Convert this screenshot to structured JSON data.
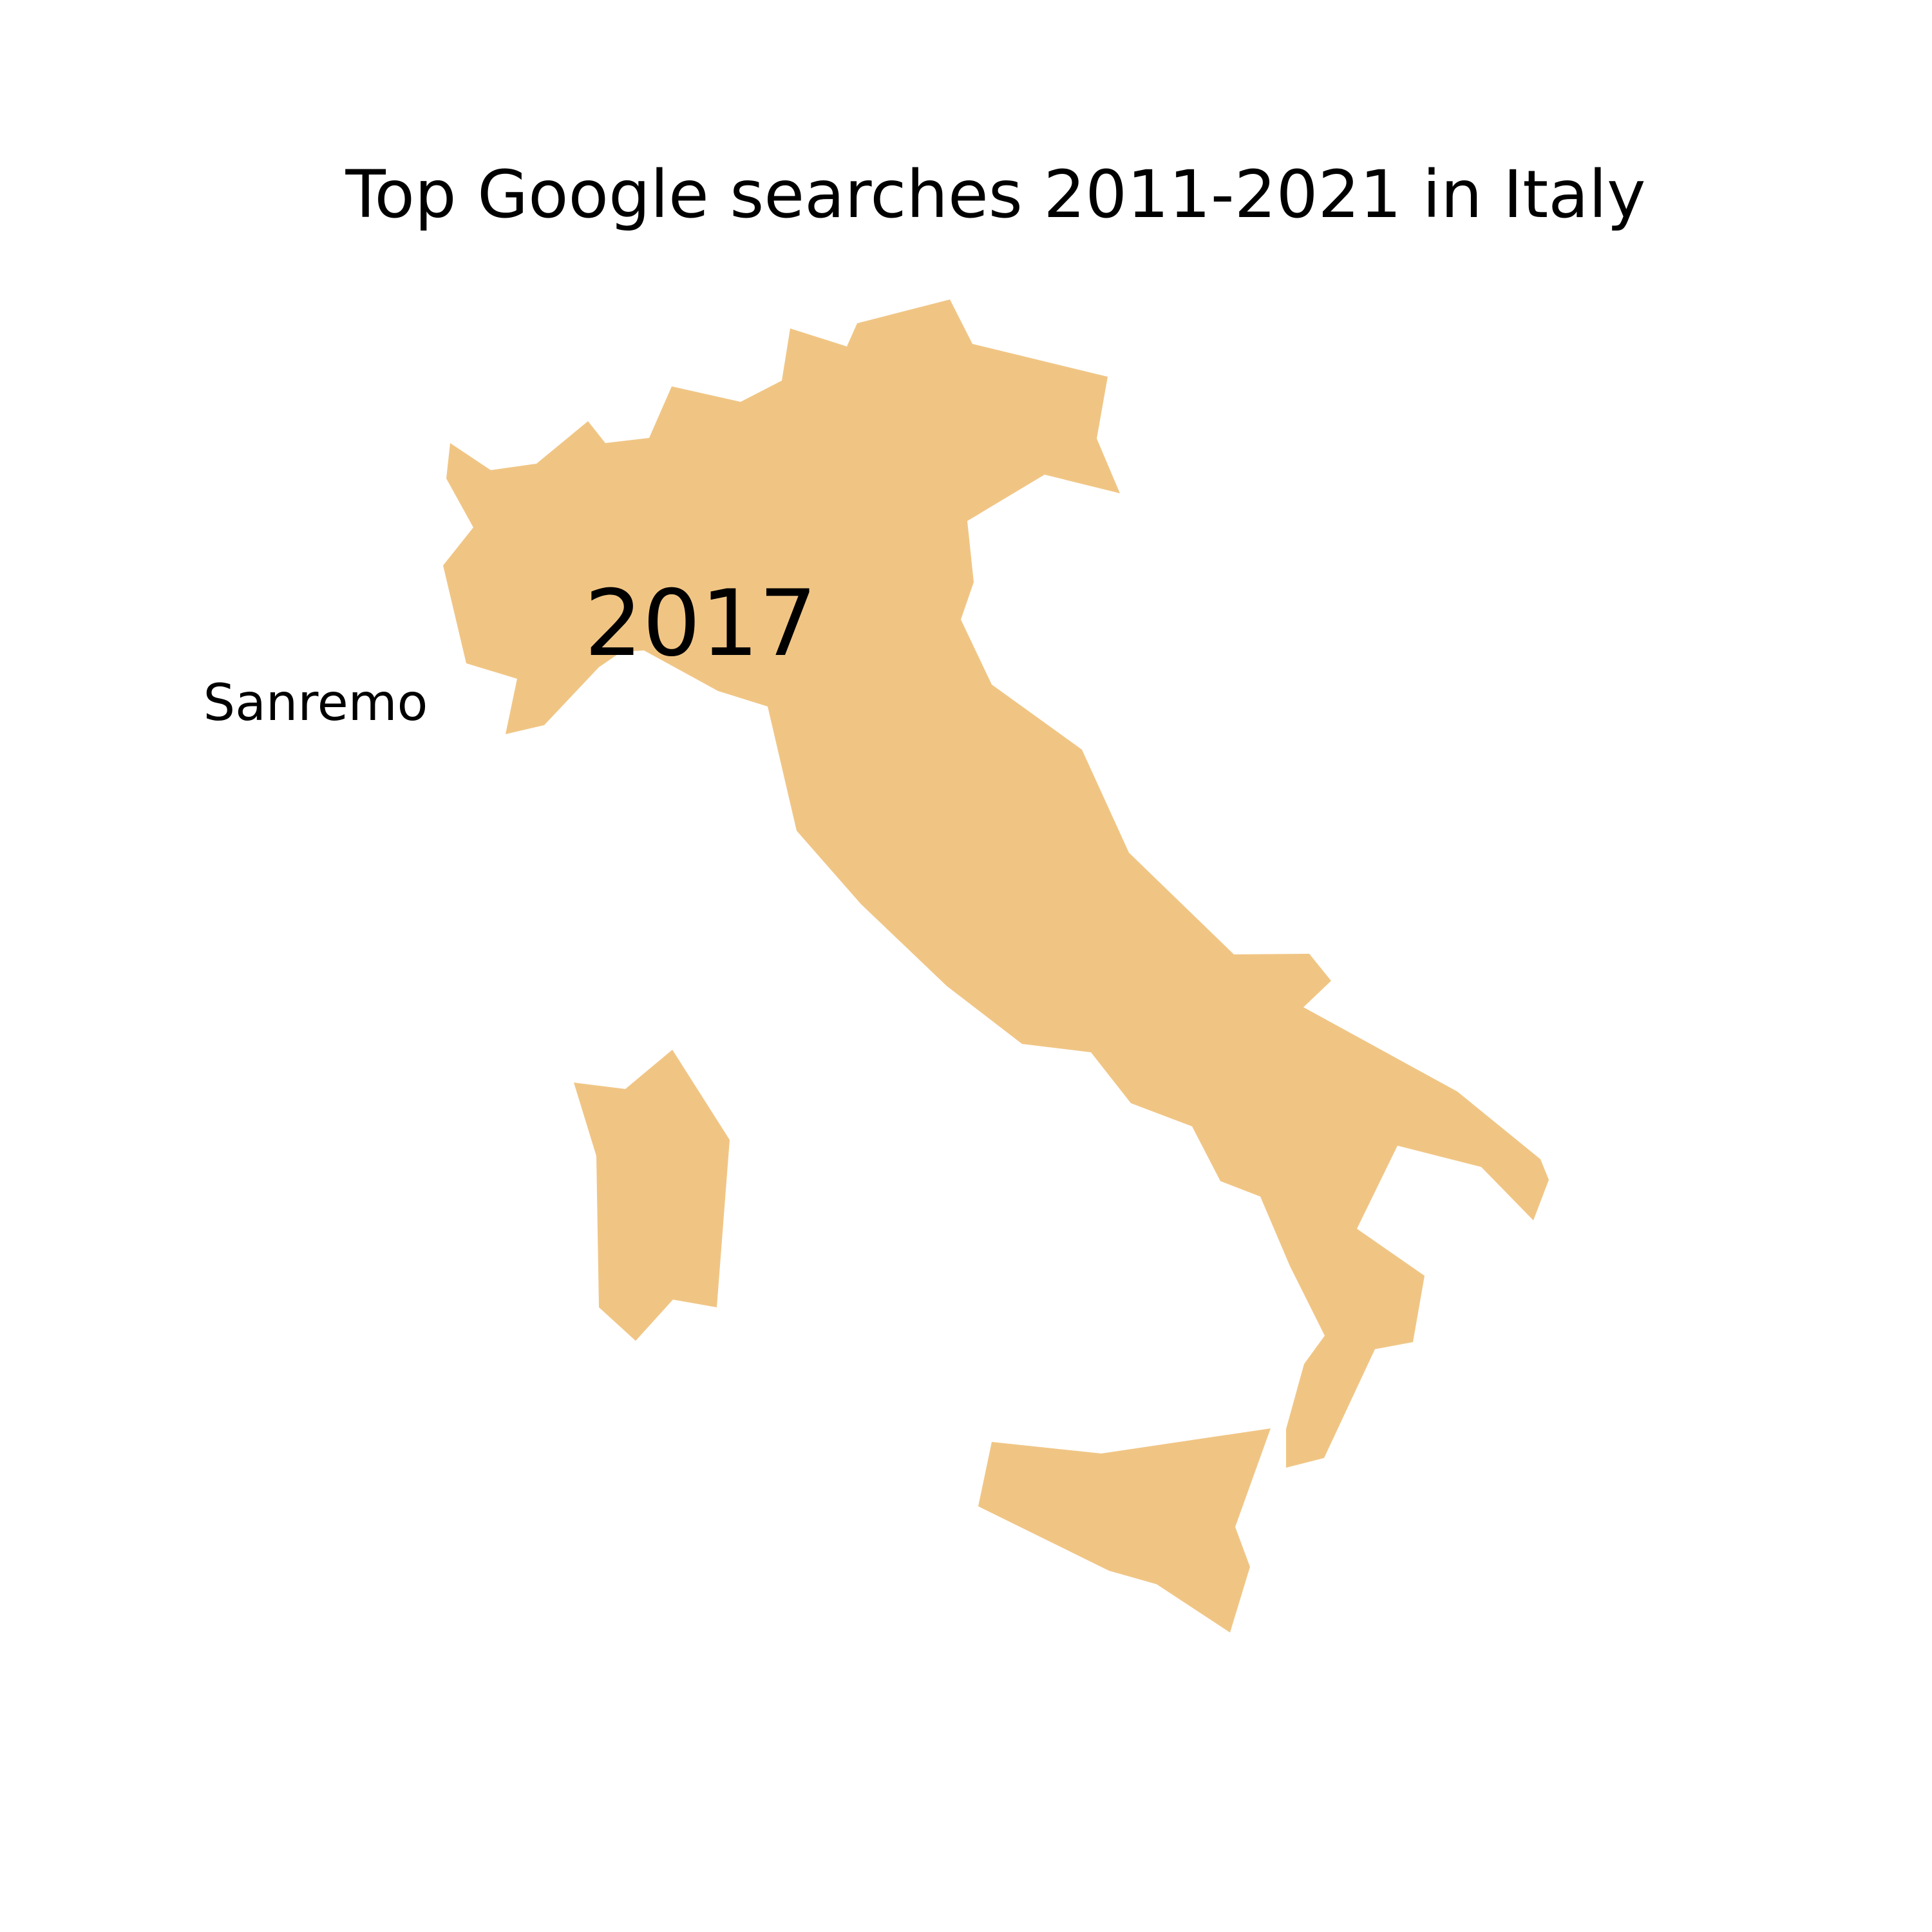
{
  "map": {
    "title": "Top Google searches 2011-2021 in Italy",
    "year": "2017",
    "top_search": "Sanremo",
    "fill_color": "#F0C584",
    "background_color": "#FFFFFF",
    "regions": [
      "mainland-italy",
      "sardinia",
      "sicily"
    ]
  }
}
